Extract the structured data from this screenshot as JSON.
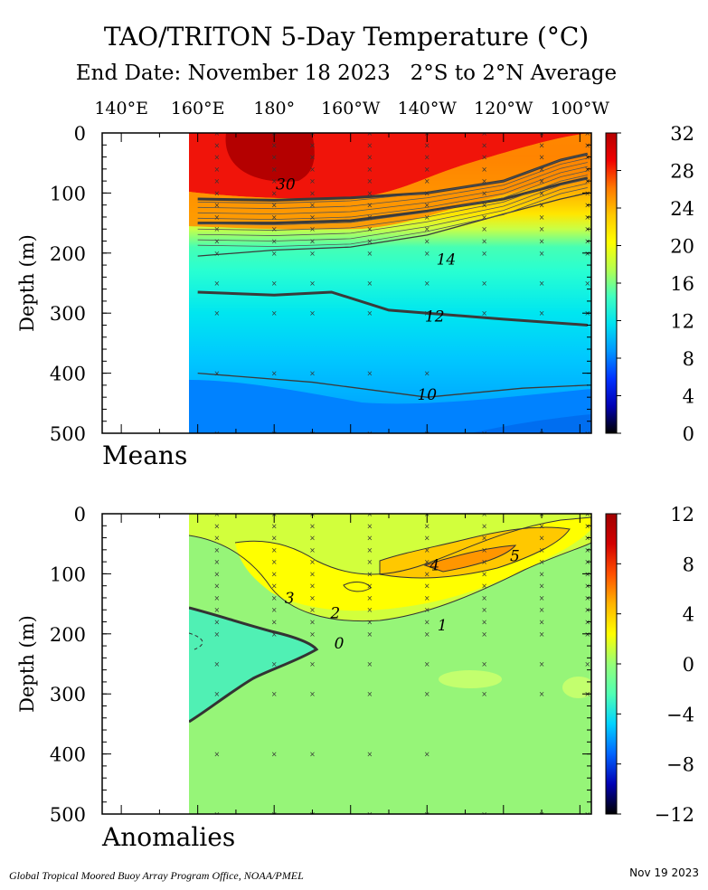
{
  "header": {
    "title": "TAO/TRITON 5-Day Temperature (°C)",
    "subtitle": "End Date: November 18 2023   2°S to 2°N Average"
  },
  "footer": {
    "credit": "Global Tropical Moored Buoy Array Program Office, NOAA/PMEL",
    "date": "Nov 19 2023"
  },
  "colors": {
    "means_scale": [
      "#000000",
      "#0000b4",
      "#0032ff",
      "#0096ff",
      "#00e1f0",
      "#40ffc0",
      "#b4ff50",
      "#ffff00",
      "#ffc800",
      "#ff7800",
      "#f00000",
      "#b40000"
    ],
    "anomaly_scale": [
      "#000000",
      "#0000b4",
      "#0064ff",
      "#00d2ff",
      "#50ffb4",
      "#96ff78",
      "#ffff00",
      "#ffb400",
      "#ff5000",
      "#d20000",
      "#a00000"
    ]
  },
  "chart_data": [
    {
      "type": "heatmap",
      "name": "Means",
      "panel_label": "Means",
      "ylabel": "Depth (m)",
      "x_tick_labels": [
        "140°E",
        "160°E",
        "180°",
        "160°W",
        "140°W",
        "120°W",
        "100°W"
      ],
      "x_ticks_lon": [
        140,
        160,
        180,
        200,
        220,
        240,
        260
      ],
      "xlim_lon": [
        135,
        263
      ],
      "data_start_lon": 160,
      "y_ticks": [
        0,
        100,
        200,
        300,
        400,
        500
      ],
      "ylim": [
        0,
        500
      ],
      "colorbar": {
        "min": 0,
        "max": 32,
        "ticks": [
          0,
          4,
          8,
          12,
          16,
          20,
          24,
          28,
          32
        ]
      },
      "contour_labels": [
        {
          "text": "30",
          "lon": 183,
          "depth": 85
        },
        {
          "text": "14",
          "lon": 225,
          "depth": 210
        },
        {
          "text": "12",
          "lon": 222,
          "depth": 305
        },
        {
          "text": "10",
          "lon": 220,
          "depth": 435
        }
      ],
      "isotherms": [
        {
          "value": 28,
          "points": [
            [
              160,
              110
            ],
            [
              180,
              112
            ],
            [
              200,
              108
            ],
            [
              220,
              100
            ],
            [
              240,
              80
            ],
            [
              255,
              45
            ],
            [
              262,
              35
            ]
          ]
        },
        {
          "value": 20,
          "points": [
            [
              160,
              150
            ],
            [
              180,
              150
            ],
            [
              200,
              146
            ],
            [
              220,
              130
            ],
            [
              240,
              110
            ],
            [
              255,
              85
            ],
            [
              262,
              75
            ]
          ]
        },
        {
          "value": 14,
          "points": [
            [
              160,
              205
            ],
            [
              180,
              195
            ],
            [
              200,
              190
            ],
            [
              220,
              170
            ],
            [
              240,
              135
            ],
            [
              255,
              110
            ],
            [
              262,
              100
            ]
          ]
        },
        {
          "value": 12,
          "points": [
            [
              160,
              265
            ],
            [
              180,
              270
            ],
            [
              195,
              265
            ],
            [
              210,
              295
            ],
            [
              240,
              310
            ],
            [
              262,
              320
            ]
          ]
        },
        {
          "value": 10,
          "points": [
            [
              160,
              400
            ],
            [
              190,
              415
            ],
            [
              220,
              440
            ],
            [
              245,
              425
            ],
            [
              262,
              420
            ]
          ]
        }
      ]
    },
    {
      "type": "heatmap",
      "name": "Anomalies",
      "panel_label": "Anomalies",
      "ylabel": "Depth (m)",
      "x_tick_labels": [],
      "x_ticks_lon": [
        140,
        160,
        180,
        200,
        220,
        240,
        260
      ],
      "xlim_lon": [
        135,
        263
      ],
      "data_start_lon": 160,
      "y_ticks": [
        0,
        100,
        200,
        300,
        400,
        500
      ],
      "ylim": [
        0,
        500
      ],
      "colorbar": {
        "min": -12,
        "max": 12,
        "ticks": [
          -12,
          -8,
          -4,
          0,
          4,
          8,
          12
        ]
      },
      "contour_labels": [
        {
          "text": "5",
          "lon": 243,
          "depth": 70
        },
        {
          "text": "4",
          "lon": 222,
          "depth": 85
        },
        {
          "text": "3",
          "lon": 184,
          "depth": 140
        },
        {
          "text": "2",
          "lon": 196,
          "depth": 165
        },
        {
          "text": "1",
          "lon": 224,
          "depth": 185
        },
        {
          "text": "0",
          "lon": 197,
          "depth": 215
        }
      ]
    }
  ]
}
